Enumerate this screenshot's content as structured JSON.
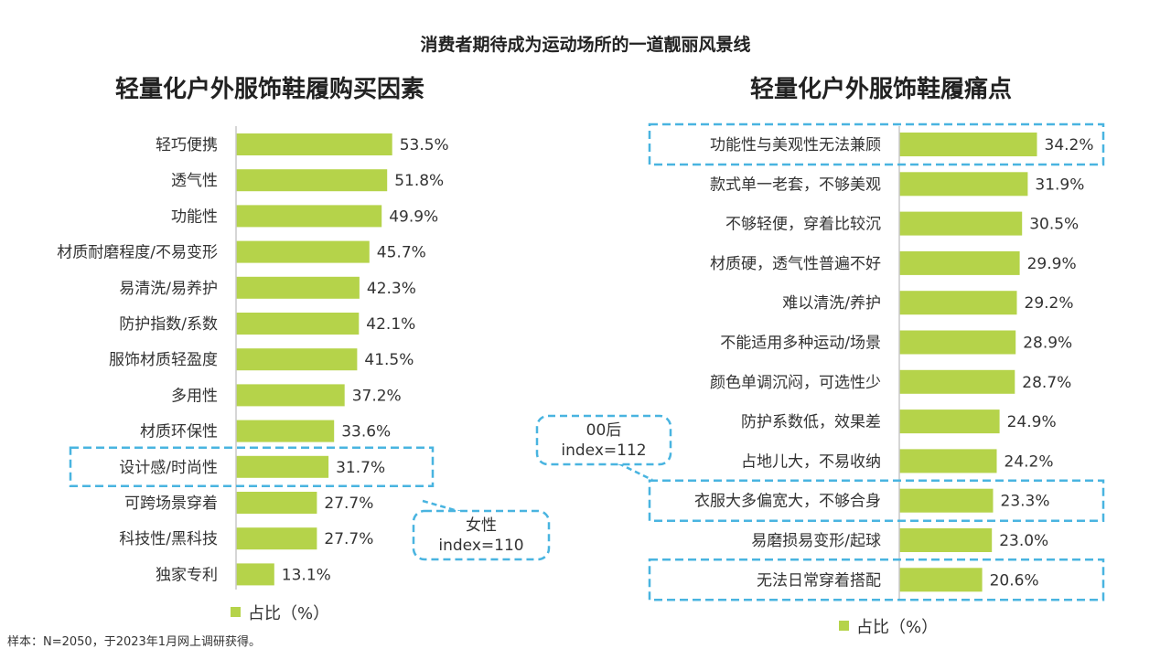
{
  "page": {
    "top_title": "消费者期待成为运动场所的一道靓丽风景线",
    "note": "样本：N=2050，于2023年1月网上调研获得。"
  },
  "colors": {
    "bar": "#B5D34A",
    "axis": "#C8C8C8",
    "highlight": "#49B4E0",
    "text": "#333333",
    "title": "#222222"
  },
  "chart_data": [
    {
      "type": "bar",
      "orientation": "horizontal",
      "title": "轻量化户外服饰鞋履购买因素",
      "legend": "占比（%）",
      "value_suffix": "%",
      "categories": [
        "轻巧便携",
        "透气性",
        "功能性",
        "材质耐磨程度/不易变形",
        "易清洗/易养护",
        "防护指数/系数",
        "服饰材质轻盈度",
        "多用性",
        "材质环保性",
        "设计感/时尚性",
        "可跨场景穿着",
        "科技性/黑科技",
        "独家专利"
      ],
      "values": [
        53.5,
        51.8,
        49.9,
        45.7,
        42.3,
        42.1,
        41.5,
        37.2,
        33.6,
        31.7,
        27.7,
        27.7,
        13.1
      ],
      "highlighted": [
        "设计感/时尚性"
      ],
      "callout": {
        "lines": [
          "女性",
          "index=110"
        ],
        "target": "设计感/时尚性"
      }
    },
    {
      "type": "bar",
      "orientation": "horizontal",
      "title": "轻量化户外服饰鞋履痛点",
      "legend": "占比（%）",
      "value_suffix": "%",
      "categories": [
        "功能性与美观性无法兼顾",
        "款式单一老套，不够美观",
        "不够轻便，穿着比较沉",
        "材质硬，透气性普遍不好",
        "难以清洗/养护",
        "不能适用多种运动/场景",
        "颜色单调沉闷，可选性少",
        "防护系数低，效果差",
        "占地儿大，不易收纳",
        "衣服大多偏宽大，不够合身",
        "易磨损易变形/起球",
        "无法日常穿着搭配"
      ],
      "values": [
        34.2,
        31.9,
        30.5,
        29.9,
        29.2,
        28.9,
        28.7,
        24.9,
        24.2,
        23.3,
        23.0,
        20.6
      ],
      "highlighted": [
        "功能性与美观性无法兼顾",
        "衣服大多偏宽大，不够合身",
        "无法日常穿着搭配"
      ],
      "callout": {
        "lines": [
          "00后",
          "index=112"
        ],
        "target": "衣服大多偏宽大，不够合身"
      }
    }
  ]
}
